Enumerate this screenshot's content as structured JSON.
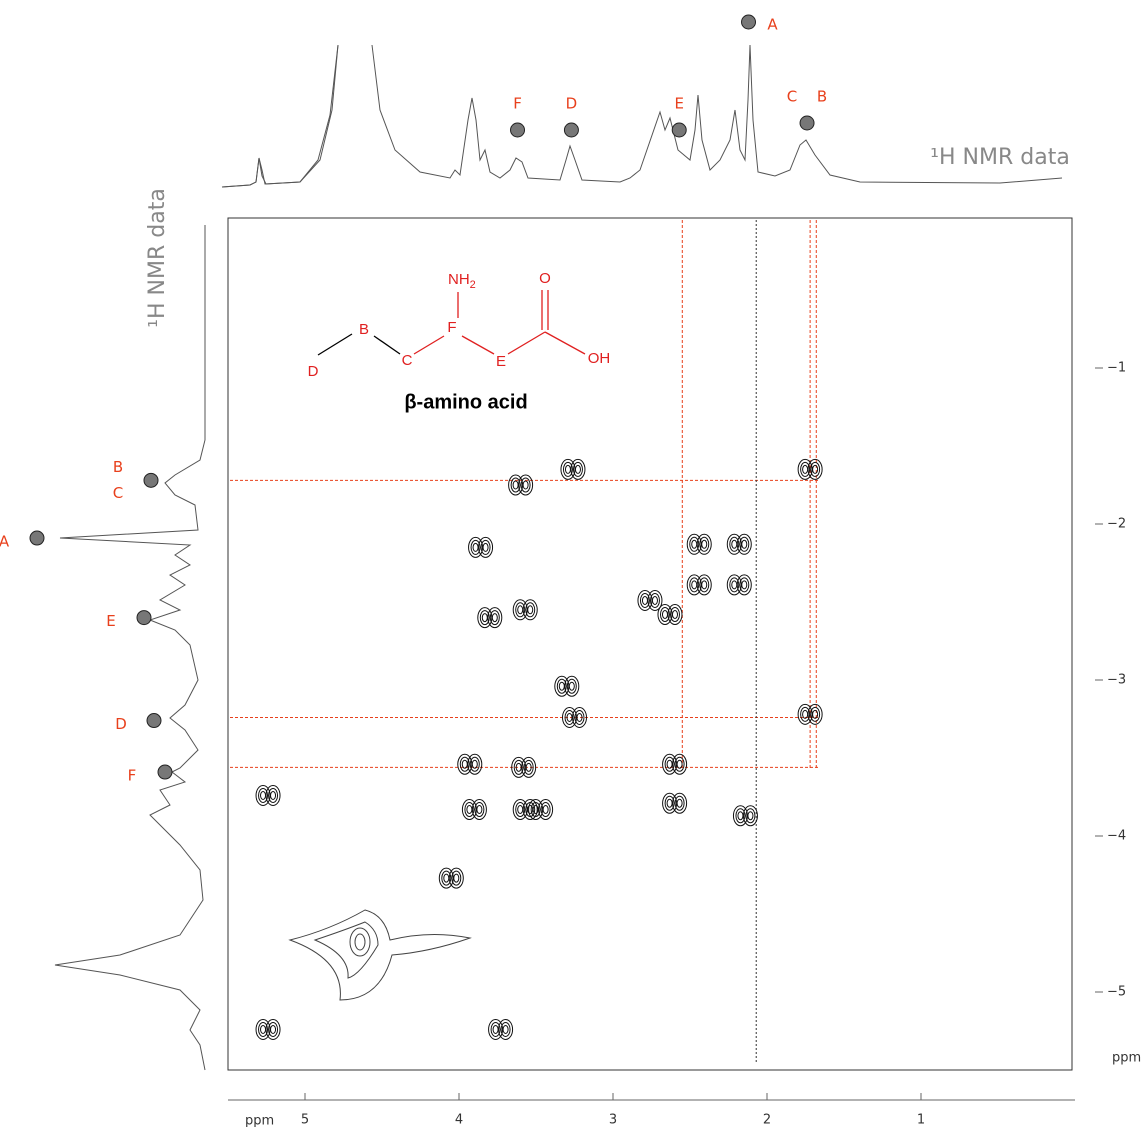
{
  "chart_data": {
    "type": "cosy",
    "spectrum_label": "¹H NMR data",
    "axis_unit": "ppm",
    "xlim": [
      5.5,
      0
    ],
    "ylim": [
      0,
      -5.5
    ],
    "xticks": [
      5,
      4,
      3,
      2,
      1
    ],
    "yticks": [
      {
        "value": -1,
        "label": "−1"
      },
      {
        "value": -2,
        "label": "−2"
      },
      {
        "value": -3,
        "label": "−3"
      },
      {
        "value": -4,
        "label": "−4"
      },
      {
        "value": -5,
        "label": "−5"
      }
    ],
    "peaks": {
      "x": [
        3.26,
        3.6,
        3.86,
        3.8,
        3.57,
        3.25,
        3.93,
        3.58,
        3.9,
        3.57,
        3.47,
        5.24,
        5.24,
        3.73,
        2.6,
        2.6,
        2.14,
        1.72,
        1.72,
        2.44,
        2.18,
        2.18,
        2.44,
        2.63,
        2.76,
        4.05,
        3.3
      ],
      "y": [
        -1.65,
        -1.75,
        -2.15,
        -2.6,
        -2.55,
        -3.24,
        -3.54,
        -3.56,
        -3.83,
        -3.83,
        -3.83,
        -3.74,
        -5.24,
        -5.24,
        -3.54,
        -3.79,
        -3.87,
        -1.65,
        -3.22,
        -2.13,
        -2.13,
        -2.39,
        -2.39,
        -2.58,
        -2.49,
        -4.27,
        -3.04
      ]
    },
    "guides": {
      "x": [
        2.55,
        1.72,
        1.68
      ],
      "y": [
        -1.72,
        -3.24,
        -3.56
      ]
    },
    "reference_x": 2.07,
    "top_markers": [
      {
        "labels": [
          "A"
        ],
        "x": 2.12
      },
      {
        "labels": [
          "C",
          "B"
        ],
        "x": 1.74
      },
      {
        "labels": [
          "D"
        ],
        "x": 3.27
      },
      {
        "labels": [
          "E"
        ],
        "x": 2.57
      },
      {
        "labels": [
          "F"
        ],
        "x": 3.62
      }
    ],
    "left_markers": [
      {
        "labels": [
          "B",
          "C"
        ],
        "y": -1.72
      },
      {
        "labels": [
          "A"
        ],
        "y": -2.09
      },
      {
        "labels": [
          "E"
        ],
        "y": -2.6
      },
      {
        "labels": [
          "D"
        ],
        "y": -3.26
      },
      {
        "labels": [
          "F"
        ],
        "y": -3.59
      }
    ],
    "structure": {
      "atoms": [
        "D",
        "B",
        "C",
        "F",
        "E",
        "O",
        "OH"
      ],
      "amine": "NH",
      "amine_sub": "2",
      "name": "β-amino acid"
    }
  }
}
